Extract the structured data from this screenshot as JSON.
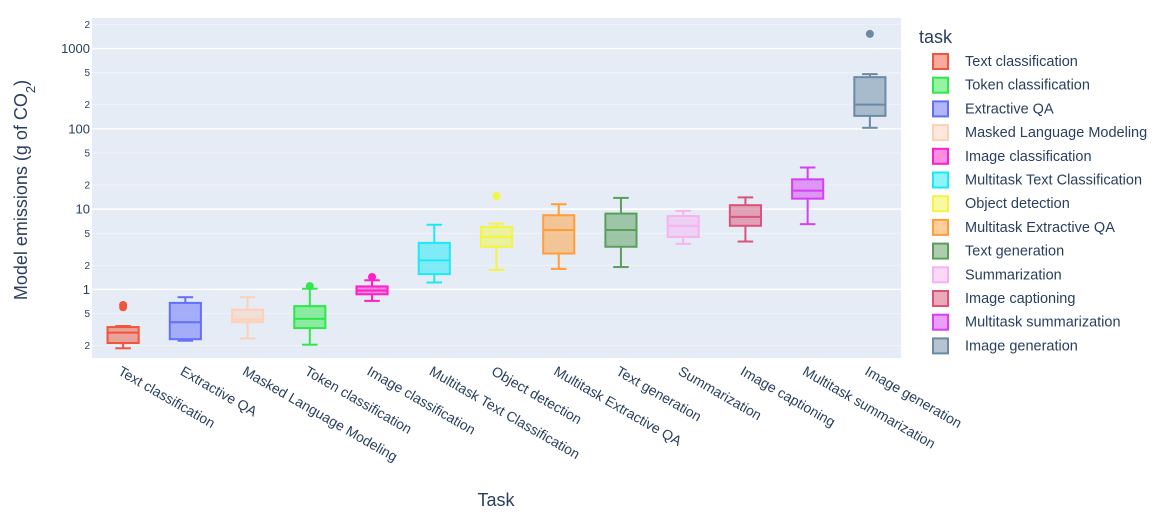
{
  "chart_data": {
    "type": "box",
    "xlabel": "Task",
    "ylabel": "Model emissions (g of CO",
    "ylabel_sub": "2",
    "ylabel_close": ")",
    "yscale": "log",
    "ylim": [
      0.14,
      2400
    ],
    "y_major_ticks": [
      {
        "value": 1,
        "label": "1"
      },
      {
        "value": 10,
        "label": "10"
      },
      {
        "value": 100,
        "label": "100"
      },
      {
        "value": 1000,
        "label": "1000"
      }
    ],
    "y_minor_ticks": [
      {
        "value": 0.2,
        "label": "2"
      },
      {
        "value": 0.5,
        "label": "5"
      },
      {
        "value": 2,
        "label": "2"
      },
      {
        "value": 5,
        "label": "5"
      },
      {
        "value": 20,
        "label": "2"
      },
      {
        "value": 50,
        "label": "5"
      },
      {
        "value": 200,
        "label": "2"
      },
      {
        "value": 500,
        "label": "5"
      },
      {
        "value": 2000,
        "label": "2"
      }
    ],
    "legend_title": "task",
    "legend_placement": "right",
    "legend": [
      {
        "label": "Text classification",
        "color": "#ef553b"
      },
      {
        "label": "Token classification",
        "color": "#2ee84a"
      },
      {
        "label": "Extractive QA",
        "color": "#636efa"
      },
      {
        "label": "Masked Language Modeling",
        "color": "#fdd1b8"
      },
      {
        "label": "Image classification",
        "color": "#ff1ec8"
      },
      {
        "label": "Multitask Text Classification",
        "color": "#1ce9f5"
      },
      {
        "label": "Object detection",
        "color": "#f2f542"
      },
      {
        "label": "Multitask Extractive QA",
        "color": "#ff9d38"
      },
      {
        "label": "Text generation",
        "color": "#5a9e5c"
      },
      {
        "label": "Summarization",
        "color": "#f5b3f0"
      },
      {
        "label": "Image captioning",
        "color": "#d9537a"
      },
      {
        "label": "Multitask summarization",
        "color": "#d63ff5"
      },
      {
        "label": "Image generation",
        "color": "#6b8aa3"
      }
    ],
    "series": [
      {
        "category": "Text classification",
        "color": "#ef553b",
        "min": 0.185,
        "q1": 0.215,
        "median": 0.29,
        "q3": 0.34,
        "max": 0.35,
        "outliers": [
          0.6,
          0.64
        ]
      },
      {
        "category": "Extractive QA",
        "color": "#636efa",
        "min": 0.23,
        "q1": 0.24,
        "median": 0.39,
        "q3": 0.68,
        "max": 0.8,
        "outliers": []
      },
      {
        "category": "Masked Language Modeling",
        "color": "#fdd1b8",
        "min": 0.245,
        "q1": 0.39,
        "median": 0.42,
        "q3": 0.56,
        "max": 0.8,
        "outliers": []
      },
      {
        "category": "Token classification",
        "color": "#2ee84a",
        "min": 0.205,
        "q1": 0.33,
        "median": 0.43,
        "q3": 0.62,
        "max": 1.02,
        "outliers": [
          1.1
        ]
      },
      {
        "category": "Image classification",
        "color": "#ff1ec8",
        "min": 0.72,
        "q1": 0.87,
        "median": 0.97,
        "q3": 1.09,
        "max": 1.3,
        "outliers": [
          1.43
        ]
      },
      {
        "category": "Multitask Text Classification",
        "color": "#1ce9f5",
        "min": 1.22,
        "q1": 1.55,
        "median": 2.3,
        "q3": 3.8,
        "max": 6.4,
        "outliers": []
      },
      {
        "category": "Object detection",
        "color": "#f2f542",
        "min": 1.75,
        "q1": 3.4,
        "median": 4.5,
        "q3": 6.0,
        "max": 6.6,
        "outliers": [
          14.5
        ]
      },
      {
        "category": "Multitask Extractive QA",
        "color": "#ff9d38",
        "min": 1.8,
        "q1": 2.8,
        "median": 5.5,
        "q3": 8.4,
        "max": 11.5,
        "outliers": []
      },
      {
        "category": "Text generation",
        "color": "#5a9e5c",
        "min": 1.9,
        "q1": 3.4,
        "median": 5.5,
        "q3": 8.8,
        "max": 13.8,
        "outliers": []
      },
      {
        "category": "Summarization",
        "color": "#f5b3f0",
        "min": 3.7,
        "q1": 4.5,
        "median": 6.2,
        "q3": 8.2,
        "max": 9.5,
        "outliers": []
      },
      {
        "category": "Image captioning",
        "color": "#d9537a",
        "min": 3.95,
        "q1": 6.2,
        "median": 8.0,
        "q3": 11.2,
        "max": 14.0,
        "outliers": []
      },
      {
        "category": "Multitask summarization",
        "color": "#d63ff5",
        "min": 6.5,
        "q1": 13.5,
        "median": 17.0,
        "q3": 23.5,
        "max": 33.0,
        "outliers": []
      },
      {
        "category": "Image generation",
        "color": "#6b8aa3",
        "min": 103,
        "q1": 145,
        "median": 200,
        "q3": 440,
        "max": 480,
        "outliers": [
          1520
        ]
      }
    ]
  }
}
